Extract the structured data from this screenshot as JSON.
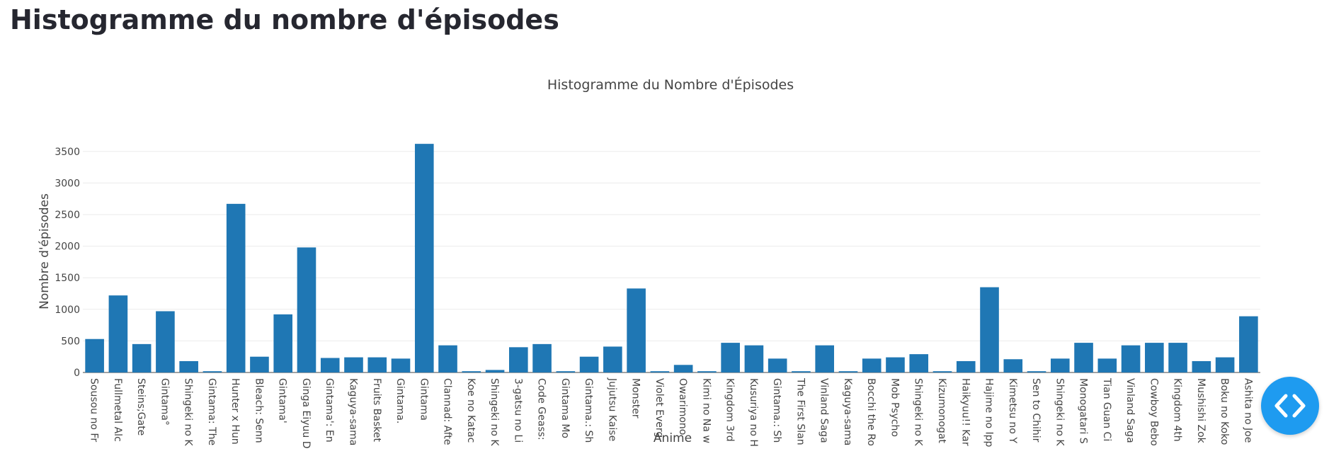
{
  "page": {
    "heading": "Histogramme du nombre d'épisodes"
  },
  "fab": {
    "icon": "code-brackets-icon",
    "color": "#1e9bf0"
  },
  "chart_data": {
    "type": "bar",
    "title": "Histogramme du Nombre d'Épisodes",
    "xlabel": "Anime",
    "ylabel": "Nombre d'épisodes",
    "ylim": [
      0,
      3700
    ],
    "yticks": [
      0,
      500,
      1000,
      1500,
      2000,
      2500,
      3000,
      3500
    ],
    "grid": true,
    "bar_color": "#1f77b4",
    "categories": [
      "Sousou no Fr",
      "Fullmetal Alc",
      "Steins;Gate",
      "Gintama°",
      "Shingeki no K",
      "Gintama: The",
      "Hunter x Hun",
      "Bleach: Senn",
      "Gintama'",
      "Ginga Eiyuu D",
      "Gintama': En",
      "Kaguya-sama",
      "Fruits Basket",
      "Gintama.",
      "Gintama",
      "Clannad: Afte",
      "Koe no Katac",
      "Shingeki no K",
      "3-gatsu no Li",
      "Code Geass:",
      "Gintama Mo",
      "Gintama.: Sh",
      "Jujutsu Kaise",
      "Monster",
      "Violet Everg",
      "Owarimono",
      "Kimi no Na w",
      "Kingdom 3rd",
      "Kusuriya no H",
      "Gintama.: Sh",
      "The First Slan",
      "Vinland Saga",
      "Kaguya-sama",
      "Bocchi the Ro",
      "Mob Psycho",
      "Shingeki no K",
      "Kizumonogat",
      "Haikyuu!! Kar",
      "Hajime no Ipp",
      "Kimetsu no Y",
      "Sen to Chihir",
      "Shingeki no K",
      "Monogatari S",
      "Tian Guan Ci",
      "Vinland Saga",
      "Cowboy Bebo",
      "Kingdom 4th",
      "Mushishi Zok",
      "Boku no Koko",
      "Ashita no Joe"
    ],
    "values": [
      530,
      1220,
      450,
      970,
      180,
      20,
      2670,
      250,
      920,
      1980,
      230,
      240,
      240,
      220,
      3620,
      430,
      20,
      40,
      400,
      450,
      20,
      250,
      410,
      1330,
      20,
      120,
      20,
      470,
      430,
      220,
      20,
      430,
      20,
      220,
      240,
      290,
      20,
      180,
      1350,
      210,
      20,
      220,
      470,
      220,
      430,
      470,
      470,
      180,
      240,
      890
    ]
  }
}
